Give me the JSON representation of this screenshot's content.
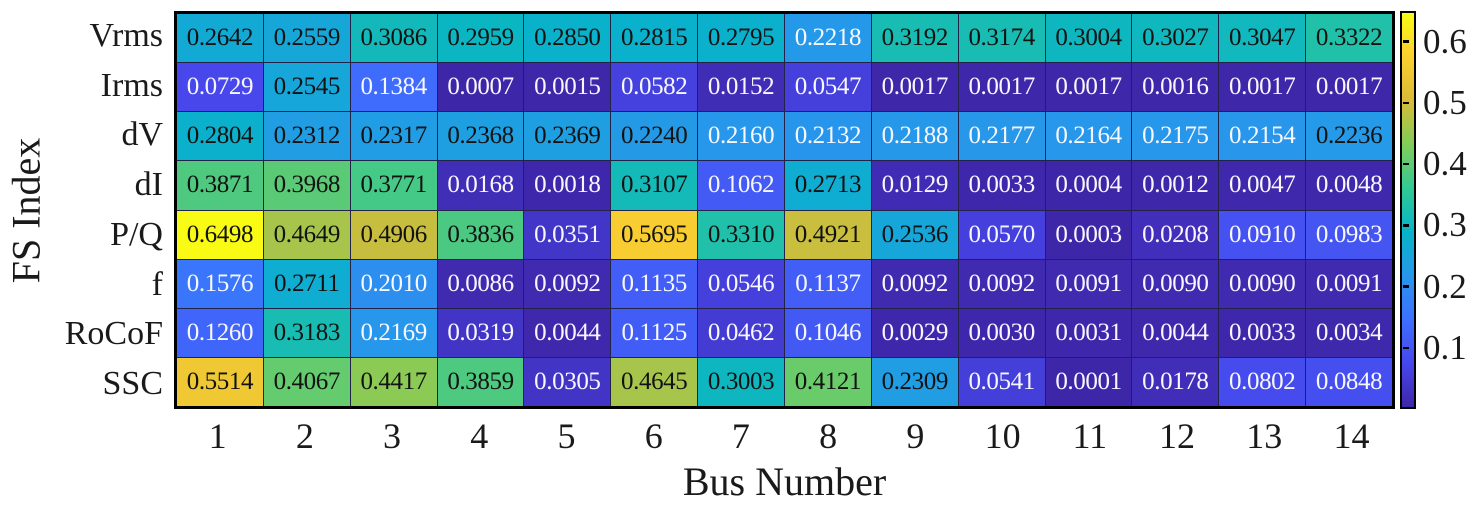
{
  "chart_data": {
    "type": "heatmap",
    "title": "",
    "xlabel": "Bus Number",
    "ylabel": "FS Index",
    "rows": [
      "Vrms",
      "Irms",
      "dV",
      "dI",
      "P/Q",
      "f",
      "RoCoF",
      "SSC"
    ],
    "columns": [
      "1",
      "2",
      "3",
      "4",
      "5",
      "6",
      "7",
      "8",
      "9",
      "10",
      "11",
      "12",
      "13",
      "14"
    ],
    "values": [
      [
        "0.2642",
        "0.2559",
        "0.3086",
        "0.2959",
        "0.2850",
        "0.2815",
        "0.2795",
        "0.2218",
        "0.3192",
        "0.3174",
        "0.3004",
        "0.3027",
        "0.3047",
        "0.3322"
      ],
      [
        "0.0729",
        "0.2545",
        "0.1384",
        "0.0007",
        "0.0015",
        "0.0582",
        "0.0152",
        "0.0547",
        "0.0017",
        "0.0017",
        "0.0017",
        "0.0016",
        "0.0017",
        "0.0017"
      ],
      [
        "0.2804",
        "0.2312",
        "0.2317",
        "0.2368",
        "0.2369",
        "0.2240",
        "0.2160",
        "0.2132",
        "0.2188",
        "0.2177",
        "0.2164",
        "0.2175",
        "0.2154",
        "0.2236"
      ],
      [
        "0.3871",
        "0.3968",
        "0.3771",
        "0.0168",
        "0.0018",
        "0.3107",
        "0.1062",
        "0.2713",
        "0.0129",
        "0.0033",
        "0.0004",
        "0.0012",
        "0.0047",
        "0.0048"
      ],
      [
        "0.6498",
        "0.4649",
        "0.4906",
        "0.3836",
        "0.0351",
        "0.5695",
        "0.3310",
        "0.4921",
        "0.2536",
        "0.0570",
        "0.0003",
        "0.0208",
        "0.0910",
        "0.0983"
      ],
      [
        "0.1576",
        "0.2711",
        "0.2010",
        "0.0086",
        "0.0092",
        "0.1135",
        "0.0546",
        "0.1137",
        "0.0092",
        "0.0092",
        "0.0091",
        "0.0090",
        "0.0090",
        "0.0091"
      ],
      [
        "0.1260",
        "0.3183",
        "0.2169",
        "0.0319",
        "0.0044",
        "0.1125",
        "0.0462",
        "0.1046",
        "0.0029",
        "0.0030",
        "0.0031",
        "0.0044",
        "0.0033",
        "0.0034"
      ],
      [
        "0.5514",
        "0.4067",
        "0.4417",
        "0.3859",
        "0.0305",
        "0.4645",
        "0.3003",
        "0.4121",
        "0.2309",
        "0.0541",
        "0.0001",
        "0.0178",
        "0.0802",
        "0.0848"
      ]
    ],
    "color_scale": {
      "colormap": "parula",
      "min": 0.0001,
      "max": 0.6498,
      "anchors": [
        "#3e26a8",
        "#4747eb",
        "#3e6fff",
        "#2797eb",
        "#07b4c8",
        "#33c894",
        "#81cc59",
        "#d9bb38",
        "#fccf30",
        "#f9fb15"
      ]
    },
    "colorbar_ticks": [
      "0.1",
      "0.2",
      "0.3",
      "0.4",
      "0.5",
      "0.6"
    ],
    "text_color_threshold": 0.2225,
    "cell_text_dark": "#121212",
    "cell_text_light": "#f7f7ff",
    "legend_position": "right-colorbar",
    "grid_on": true
  }
}
